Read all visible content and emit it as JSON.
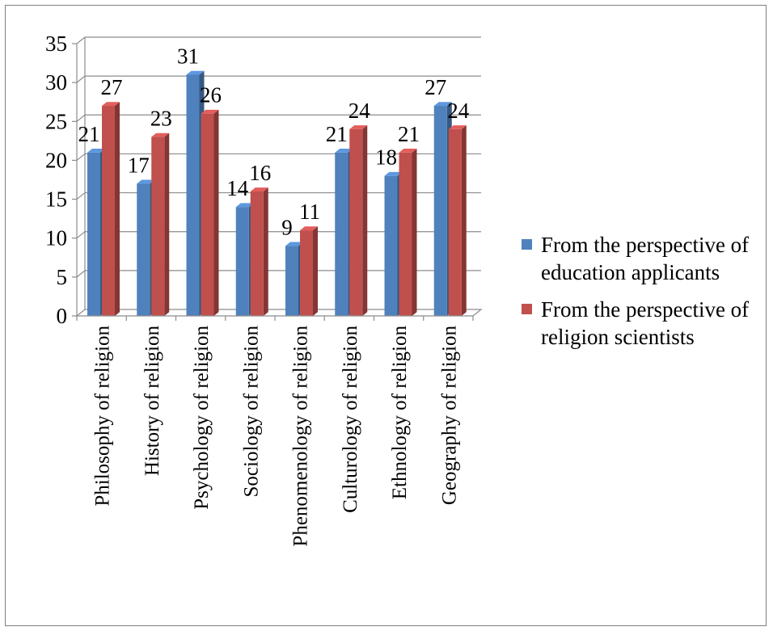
{
  "chart_data": {
    "type": "bar",
    "categories": [
      "Philosophy of religion",
      "History of religion",
      "Psychology of religion",
      "Sociology of religion",
      "Phenomenology of religion",
      "Culturology of religion",
      "Ethnology of religion",
      "Geography of religion"
    ],
    "series": [
      {
        "name": "From the perspective of education applicants",
        "color": "#4f81bd",
        "values": [
          21,
          17,
          31,
          14,
          9,
          21,
          18,
          27
        ]
      },
      {
        "name": "From the perspective of religion scientists",
        "color": "#c0504d",
        "values": [
          27,
          23,
          26,
          16,
          11,
          24,
          21,
          24
        ]
      }
    ],
    "ylim": [
      0,
      35
    ],
    "yticks": [
      0,
      5,
      10,
      15,
      20,
      25,
      30,
      35
    ],
    "grid": true,
    "legend_position": "right",
    "data_labels": true,
    "style": "3d-clustered"
  }
}
